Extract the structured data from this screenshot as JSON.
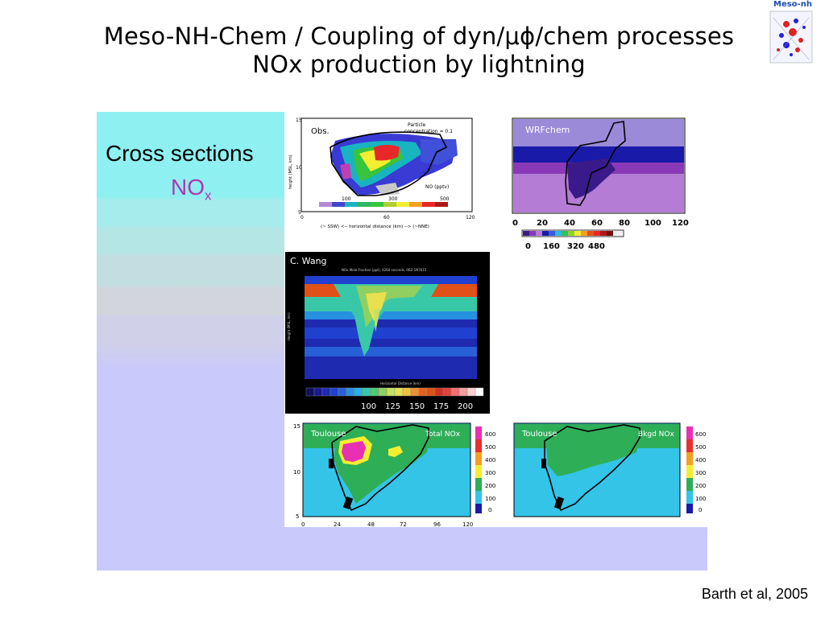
{
  "slide": {
    "title_line1": "Meso-NH-Chem / Coupling of dyn/μϕ/chem processes",
    "title_line2": "NOx production by lightning",
    "logo_label": "Meso-nh",
    "heading": "Cross sections",
    "species": "NO",
    "species_sub": "x",
    "citation": "Barth et al, 2005"
  },
  "panels": {
    "obs": {
      "label": "Obs.",
      "note_line1": "Particle",
      "note_line2": "concentration = 0.1",
      "y_label": "height (MSL, km)",
      "y_ticks": [
        "15",
        "10",
        "5"
      ],
      "colorbar_title": "NO (pptv)",
      "colorbar_ticks": [
        "100",
        "300",
        "500"
      ],
      "x_ticks": [
        "0",
        "60",
        "120"
      ],
      "x_label": "(~ SSW) <-- horizontal distance (km) --> (~NNE)"
    },
    "wrfchem": {
      "label": "WRFchem",
      "x_ticks": [
        "0",
        "20",
        "40",
        "60",
        "80",
        "100",
        "120"
      ],
      "colorbar_ticks": [
        "0",
        "160",
        "320",
        "480"
      ]
    },
    "cwang": {
      "label": "C. Wang",
      "subtitle": "NOx Mole Fraction (ppt), 4260 seconds, 06Z-1N7615",
      "x_label": "Horizontal Distance (km)",
      "y_label": "Height (MSL, km)",
      "colorbar_ticks": [
        "100",
        "125",
        "150",
        "175",
        "200"
      ]
    },
    "toulouse_total": {
      "label": "Toulouse",
      "tag": "Total NOx",
      "y_ticks": [
        "15",
        "10",
        "5"
      ],
      "x_ticks": [
        "0",
        "24",
        "48",
        "72",
        "96",
        "120"
      ],
      "colorbar_ticks": [
        "600",
        "500",
        "400",
        "300",
        "200",
        "100",
        "0"
      ]
    },
    "toulouse_bkgd": {
      "label": "Toulouse",
      "tag": "Bkgd NOx",
      "colorbar_ticks": [
        "600",
        "500",
        "400",
        "300",
        "200",
        "100",
        "0"
      ]
    }
  },
  "colors": {
    "accent_magenta": "#b038b0",
    "panel_lavender": "#c9c9fb",
    "band_cyan": "#8ef0f0",
    "toulouse_ocean": "#33c4e8",
    "toulouse_green": "#2fae58"
  }
}
